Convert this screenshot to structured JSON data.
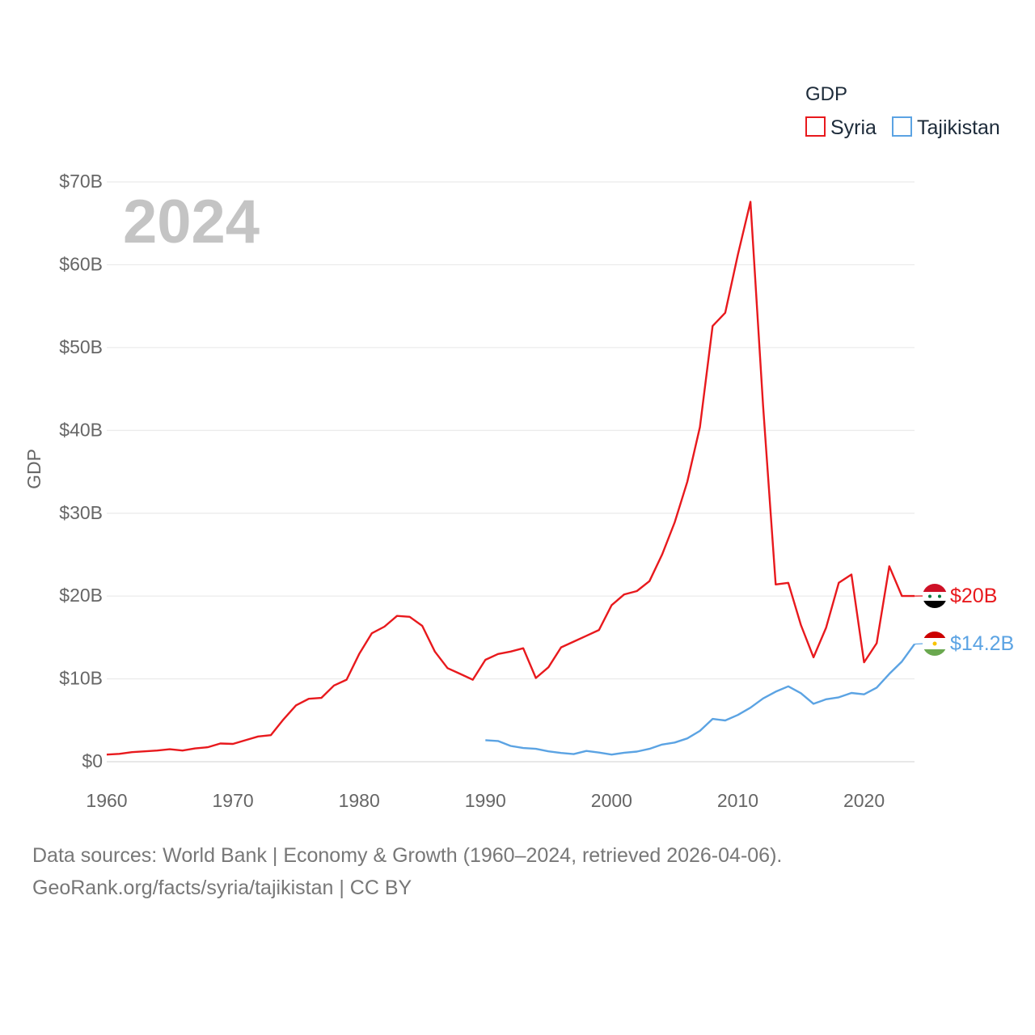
{
  "chart_data": {
    "type": "line",
    "year_label": "2024",
    "ylabel": "GDP",
    "legend_title": "GDP",
    "legend_position": "top-right",
    "xlim": [
      1960,
      2024
    ],
    "ylim": [
      0,
      70
    ],
    "y_ticks": [
      {
        "value": 0,
        "label": "$0"
      },
      {
        "value": 10,
        "label": "$10B"
      },
      {
        "value": 20,
        "label": "$20B"
      },
      {
        "value": 30,
        "label": "$30B"
      },
      {
        "value": 40,
        "label": "$40B"
      },
      {
        "value": 50,
        "label": "$50B"
      },
      {
        "value": 60,
        "label": "$60B"
      },
      {
        "value": 70,
        "label": "$70B"
      }
    ],
    "x_ticks": [
      1960,
      1970,
      1980,
      1990,
      2000,
      2010,
      2020
    ],
    "series": [
      {
        "name": "Syria",
        "color": "#e8191d",
        "end_label": "$20B",
        "flag": "syria-flag-icon",
        "x": [
          1960,
          1961,
          1962,
          1963,
          1964,
          1965,
          1966,
          1967,
          1968,
          1969,
          1970,
          1971,
          1972,
          1973,
          1974,
          1975,
          1976,
          1977,
          1978,
          1979,
          1980,
          1981,
          1982,
          1983,
          1984,
          1985,
          1986,
          1987,
          1988,
          1989,
          1990,
          1991,
          1992,
          1993,
          1994,
          1995,
          1996,
          1997,
          1998,
          1999,
          2000,
          2001,
          2002,
          2003,
          2004,
          2005,
          2006,
          2007,
          2008,
          2009,
          2010,
          2011,
          2012,
          2013,
          2014,
          2015,
          2016,
          2017,
          2018,
          2019,
          2020,
          2021,
          2022,
          2023,
          2024
        ],
        "values": [
          0.86,
          0.95,
          1.15,
          1.25,
          1.35,
          1.5,
          1.35,
          1.6,
          1.75,
          2.2,
          2.15,
          2.6,
          3.05,
          3.2,
          5.1,
          6.8,
          7.6,
          7.7,
          9.2,
          9.9,
          13.0,
          15.5,
          16.3,
          17.6,
          17.5,
          16.4,
          13.3,
          11.3,
          10.6,
          9.9,
          12.3,
          13.0,
          13.3,
          13.7,
          10.1,
          11.4,
          13.8,
          14.5,
          15.2,
          15.9,
          18.9,
          20.2,
          20.6,
          21.8,
          25.0,
          28.9,
          33.8,
          40.4,
          52.6,
          54.2,
          61.2,
          67.6,
          43.0,
          21.4,
          21.6,
          16.5,
          12.6,
          16.2,
          21.6,
          22.6,
          12.0,
          14.3,
          23.6,
          20.0,
          20.0
        ]
      },
      {
        "name": "Tajikistan",
        "color": "#5ba3e3",
        "end_label": "$14.2B",
        "flag": "tajikistan-flag-icon",
        "x": [
          1990,
          1991,
          1992,
          1993,
          1994,
          1995,
          1996,
          1997,
          1998,
          1999,
          2000,
          2001,
          2002,
          2003,
          2004,
          2005,
          2006,
          2007,
          2008,
          2009,
          2010,
          2011,
          2012,
          2013,
          2014,
          2015,
          2016,
          2017,
          2018,
          2019,
          2020,
          2021,
          2022,
          2023,
          2024
        ],
        "values": [
          2.6,
          2.5,
          1.9,
          1.65,
          1.55,
          1.25,
          1.05,
          0.92,
          1.3,
          1.1,
          0.86,
          1.08,
          1.22,
          1.55,
          2.07,
          2.31,
          2.81,
          3.72,
          5.16,
          4.98,
          5.64,
          6.52,
          7.63,
          8.45,
          9.1,
          8.27,
          6.99,
          7.54,
          7.77,
          8.3,
          8.13,
          8.94,
          10.6,
          12.1,
          14.2
        ]
      }
    ]
  },
  "source_line1": "Data sources: World Bank | Economy & Growth (1960–2024, retrieved 2026-04-06).",
  "source_line2": "GeoRank.org/facts/syria/tajikistan | CC BY"
}
